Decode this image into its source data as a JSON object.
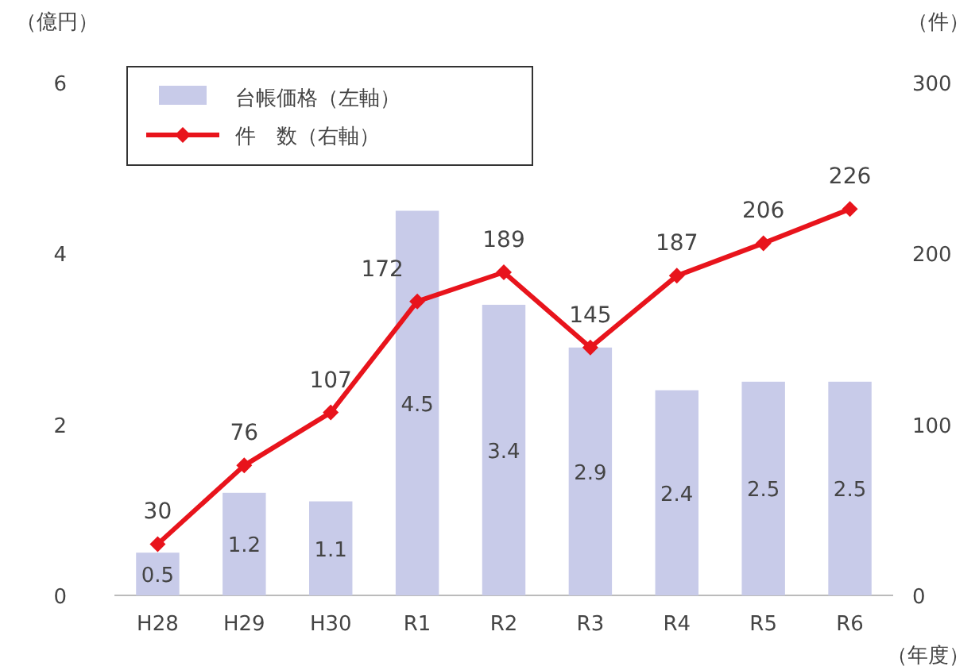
{
  "chart_data": {
    "type": "bar",
    "categories": [
      "H28",
      "H29",
      "H30",
      "R1",
      "R2",
      "R3",
      "R4",
      "R5",
      "R6"
    ],
    "ylabel": "（億円）",
    "y2label": "（件）",
    "xlabel": "（年度）",
    "ylim": [
      0,
      6
    ],
    "yticks": [
      0,
      2,
      4,
      6
    ],
    "y2lim": [
      0,
      300
    ],
    "y2ticks": [
      0,
      100,
      200,
      300
    ],
    "legend": "top left",
    "data_labels": true,
    "marker": "diamond",
    "line_style": "solid",
    "series": [
      {
        "name": "台帳価格（左軸）",
        "color": "#c8cbe9",
        "values": [
          0.5,
          1.2,
          1.1,
          4.5,
          3.4,
          2.9,
          2.4,
          2.5,
          2.5
        ]
      },
      {
        "name": "件　数（右軸）",
        "type": "line",
        "axis": "y2",
        "color": "#e8141c",
        "values": [
          30,
          76,
          107,
          172,
          189,
          145,
          187,
          206,
          226
        ]
      }
    ]
  }
}
